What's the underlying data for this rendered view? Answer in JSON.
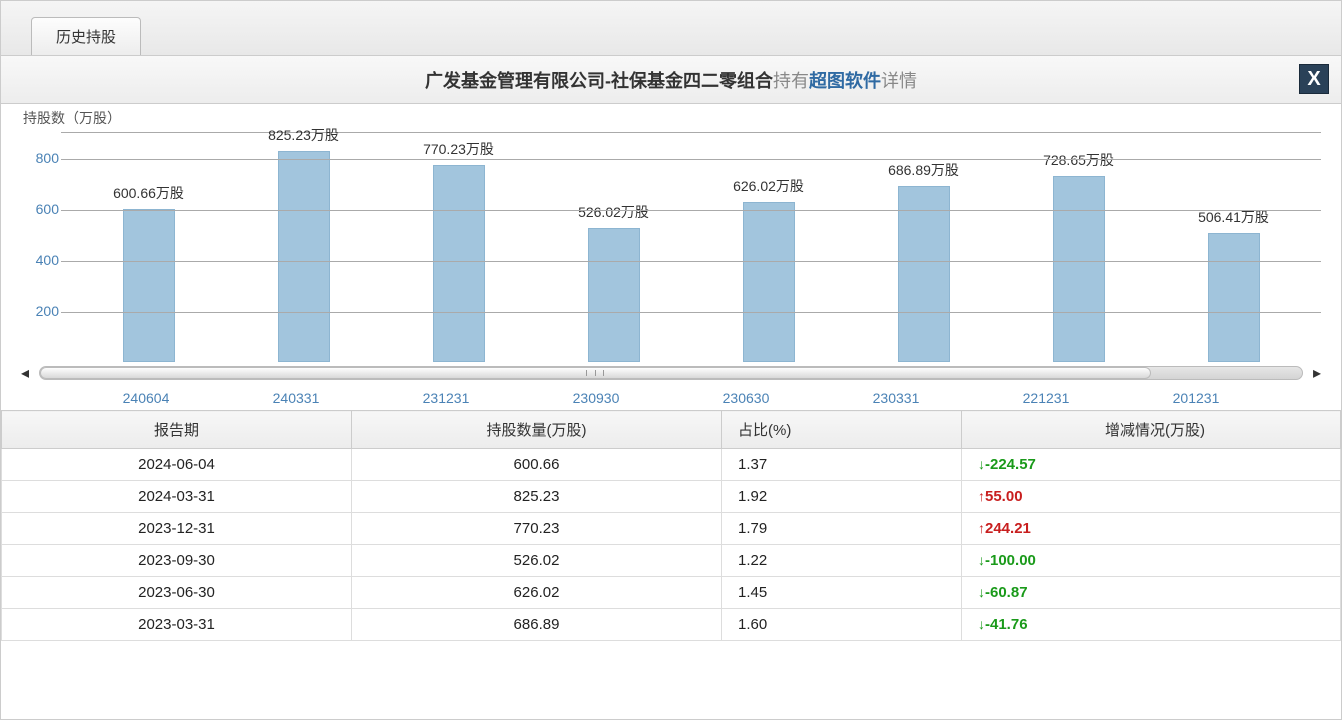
{
  "tab": {
    "label": "历史持股"
  },
  "title": {
    "prefix": "广发基金管理有限公司-社保基金四二零组合",
    "mid": "持有",
    "stock": "超图软件",
    "suffix": "详情"
  },
  "close_label": "X",
  "chart": {
    "type": "bar",
    "y_label": "持股数（万股）",
    "y_ticks": [
      800,
      600,
      400,
      200
    ],
    "y_max": 900,
    "unit": "万股",
    "bar_color": "#a2c5dd",
    "bar_border": "#8db5d1",
    "tick_color": "#4a82b5",
    "grid_color": "#aaaaaa",
    "bars": [
      {
        "x": "240604",
        "value": 600.66,
        "label": "600.66万股"
      },
      {
        "x": "240331",
        "value": 825.23,
        "label": "825.23万股"
      },
      {
        "x": "231231",
        "value": 770.23,
        "label": "770.23万股"
      },
      {
        "x": "230930",
        "value": 526.02,
        "label": "526.02万股"
      },
      {
        "x": "230630",
        "value": 626.02,
        "label": "626.02万股"
      },
      {
        "x": "230331",
        "value": 686.89,
        "label": "686.89万股"
      },
      {
        "x": "221231",
        "value": 728.65,
        "label": "728.65万股"
      },
      {
        "x": "201231",
        "value": 506.41,
        "label": "506.41万股"
      }
    ]
  },
  "table": {
    "columns": [
      "报告期",
      "持股数量(万股)",
      "占比(%)",
      "增减情况(万股)"
    ],
    "rows": [
      {
        "period": "2024-06-04",
        "qty": "600.66",
        "pct": "1.37",
        "dir": "down",
        "change": "-224.57"
      },
      {
        "period": "2024-03-31",
        "qty": "825.23",
        "pct": "1.92",
        "dir": "up",
        "change": "55.00"
      },
      {
        "period": "2023-12-31",
        "qty": "770.23",
        "pct": "1.79",
        "dir": "up",
        "change": "244.21"
      },
      {
        "period": "2023-09-30",
        "qty": "526.02",
        "pct": "1.22",
        "dir": "down",
        "change": "-100.00"
      },
      {
        "period": "2023-06-30",
        "qty": "626.02",
        "pct": "1.45",
        "dir": "down",
        "change": "-60.87"
      },
      {
        "period": "2023-03-31",
        "qty": "686.89",
        "pct": "1.60",
        "dir": "down",
        "change": "-41.76"
      }
    ]
  },
  "colors": {
    "up": "#c81e1e",
    "down": "#1a9a1a",
    "header_bg_top": "#f7f7f7",
    "header_bg_bottom": "#ececec"
  }
}
